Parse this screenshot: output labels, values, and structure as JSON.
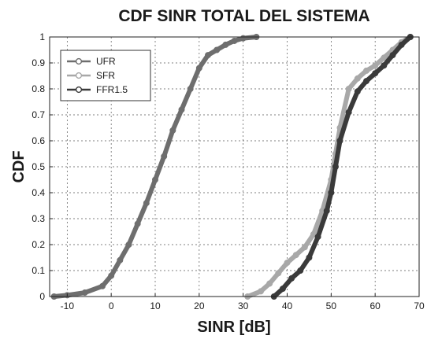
{
  "chart_data": {
    "type": "line",
    "title": "CDF SINR TOTAL DEL SISTEMA",
    "xlabel": "SINR [dB]",
    "ylabel": "CDF",
    "xlim": [
      -14,
      70
    ],
    "ylim": [
      0,
      1
    ],
    "x_ticks": [
      -10,
      0,
      10,
      20,
      30,
      40,
      50,
      60,
      70
    ],
    "y_ticks": [
      0,
      0.1,
      0.2,
      0.3,
      0.4,
      0.5,
      0.6,
      0.7,
      0.8,
      0.9,
      1
    ],
    "grid": true,
    "legend_position": "top-left",
    "series": [
      {
        "name": "UFR",
        "color": "#6e6e6e",
        "x": [
          -13,
          -10,
          -6,
          -2,
          0,
          2,
          4,
          6,
          8,
          10,
          12,
          14,
          16,
          18,
          20,
          22,
          24,
          26,
          28,
          30,
          33
        ],
        "y": [
          0,
          0.005,
          0.015,
          0.04,
          0.08,
          0.14,
          0.2,
          0.28,
          0.36,
          0.45,
          0.54,
          0.64,
          0.72,
          0.8,
          0.88,
          0.93,
          0.95,
          0.97,
          0.985,
          0.995,
          1
        ]
      },
      {
        "name": "SFR",
        "color": "#a8a8a8",
        "x": [
          31,
          34,
          36,
          38,
          40,
          42,
          44,
          46,
          48,
          50,
          51,
          52,
          54,
          56,
          58,
          60,
          62,
          64,
          66,
          68
        ],
        "y": [
          0,
          0.02,
          0.05,
          0.09,
          0.13,
          0.16,
          0.19,
          0.24,
          0.33,
          0.45,
          0.55,
          0.65,
          0.8,
          0.84,
          0.87,
          0.89,
          0.92,
          0.95,
          0.98,
          1
        ]
      },
      {
        "name": "FFR1.5",
        "color": "#3a3a3a",
        "x": [
          37,
          39,
          41,
          43,
          45,
          47,
          49,
          50,
          51,
          52,
          54,
          56,
          58,
          60,
          62,
          64,
          66,
          68
        ],
        "y": [
          0,
          0.03,
          0.07,
          0.1,
          0.15,
          0.23,
          0.33,
          0.4,
          0.5,
          0.6,
          0.71,
          0.79,
          0.83,
          0.86,
          0.89,
          0.93,
          0.97,
          1
        ]
      }
    ]
  }
}
